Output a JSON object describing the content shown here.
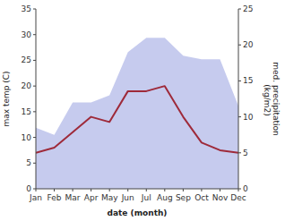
{
  "chart_data": {
    "type": "line",
    "categories": [
      "Jan",
      "Feb",
      "Mar",
      "Apr",
      "May",
      "Jun",
      "Jul",
      "Aug",
      "Sep",
      "Oct",
      "Nov",
      "Dec"
    ],
    "series": [
      {
        "type": "area",
        "color": "#b3b9e8",
        "axis": "y2",
        "values": [
          8.5,
          7.5,
          12,
          12,
          13,
          19,
          21,
          21,
          18.5,
          18,
          18,
          11.5
        ]
      },
      {
        "type": "line",
        "color": "#9e2a3a",
        "values": [
          7,
          8,
          11,
          14,
          13,
          19,
          19,
          20,
          14,
          9,
          7.5,
          7
        ]
      }
    ],
    "xlabel": "date (month)",
    "ylabel": "max temp (C)",
    "y2label": "med. precipitation\n (kg/m2)",
    "ylim": [
      0,
      35
    ],
    "yticks": [
      0,
      5,
      10,
      15,
      20,
      25,
      30,
      35
    ],
    "y2lim": [
      0,
      25
    ],
    "y2ticks": [
      0,
      5,
      10,
      15,
      20,
      25
    ],
    "grid": false
  }
}
